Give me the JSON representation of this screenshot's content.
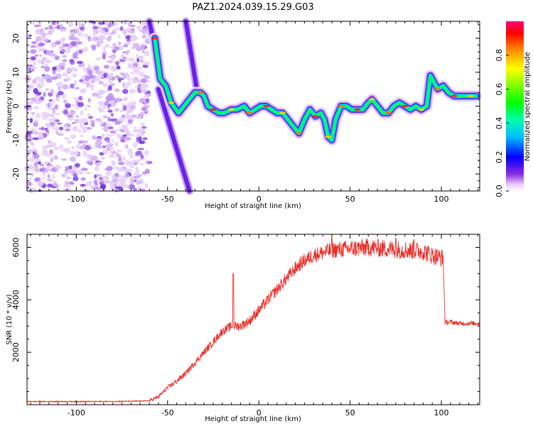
{
  "title": "PAZ1.2024.039.15.29.G03",
  "chart_data": [
    {
      "type": "heatmap",
      "xlabel": "Height of straight line (km)",
      "ylabel": "Frequency (Hz)",
      "xlim": [
        -127,
        121
      ],
      "ylim": [
        -25,
        25
      ],
      "xticks": [
        -100,
        -50,
        0,
        50,
        100
      ],
      "yticks": [
        -20,
        -10,
        0,
        10,
        20
      ],
      "colorbar": {
        "label": "Normalized spectral amplitude",
        "range": [
          0,
          1
        ],
        "ticks": [
          0.0,
          0.2,
          0.4,
          0.6,
          0.8
        ],
        "tick_labels": [
          "0.0",
          "0.2",
          "0.4",
          "0.6",
          "0.8"
        ],
        "colormap": "rainbow (magenta → blue → cyan → green → yellow → red)"
      },
      "ridge": {
        "description": "frequency of spectral peak vs height",
        "points": [
          [
            -57,
            20
          ],
          [
            -54,
            8
          ],
          [
            -51,
            6
          ],
          [
            -48,
            1
          ],
          [
            -44,
            -2
          ],
          [
            -35,
            4
          ],
          [
            -32,
            4
          ],
          [
            -30,
            3
          ],
          [
            -28,
            0
          ],
          [
            -25,
            -1
          ],
          [
            -22,
            -2
          ],
          [
            -19,
            -2
          ],
          [
            -15,
            -1
          ],
          [
            -12,
            -1
          ],
          [
            -8,
            0
          ],
          [
            -5,
            -2
          ],
          [
            -2,
            -1
          ],
          [
            1,
            0
          ],
          [
            4,
            0
          ],
          [
            7,
            -1
          ],
          [
            10,
            -2
          ],
          [
            13,
            -2
          ],
          [
            16,
            -4
          ],
          [
            19,
            -6
          ],
          [
            22,
            -8
          ],
          [
            25,
            -4
          ],
          [
            28,
            -1
          ],
          [
            31,
            -3
          ],
          [
            34,
            -2
          ],
          [
            36,
            -4
          ],
          [
            38,
            -9
          ],
          [
            40,
            -10
          ],
          [
            42,
            -4
          ],
          [
            45,
            0
          ],
          [
            48,
            0
          ],
          [
            51,
            -1
          ],
          [
            54,
            -1
          ],
          [
            57,
            -1
          ],
          [
            60,
            1
          ],
          [
            62,
            2
          ],
          [
            65,
            0
          ],
          [
            68,
            -2
          ],
          [
            71,
            -2
          ],
          [
            74,
            0
          ],
          [
            77,
            1
          ],
          [
            80,
            0
          ],
          [
            83,
            -1
          ],
          [
            86,
            0
          ],
          [
            89,
            -1
          ],
          [
            92,
            0
          ],
          [
            94,
            9
          ],
          [
            98,
            5
          ],
          [
            101,
            6
          ],
          [
            104,
            4
          ],
          [
            107,
            3
          ],
          [
            110,
            3
          ],
          [
            113,
            3
          ],
          [
            116,
            3
          ],
          [
            119,
            3
          ]
        ]
      },
      "noise_region": {
        "x_range": [
          -127,
          -60
        ],
        "description": "scattered low-amplitude noise"
      },
      "streaks": [
        {
          "x": [
            -60,
            -52
          ],
          "y": [
            25,
            5
          ]
        },
        {
          "x": [
            -55,
            -38
          ],
          "y": [
            5,
            -25
          ]
        },
        {
          "x": [
            -40,
            -34
          ],
          "y": [
            25,
            5
          ]
        }
      ]
    },
    {
      "type": "line",
      "xlabel": "Height of straight line (km)",
      "ylabel": "SNR (10 * v/v)",
      "xlim": [
        -127,
        121
      ],
      "ylim": [
        0,
        6500
      ],
      "xticks": [
        -100,
        -50,
        0,
        50,
        100
      ],
      "yticks": [
        2000,
        4000,
        6000
      ],
      "series": [
        {
          "color": "#e8302a",
          "x": [
            -127,
            -110,
            -90,
            -70,
            -60,
            -55,
            -50,
            -45,
            -40,
            -35,
            -30,
            -25,
            -20,
            -15,
            -10,
            -5,
            0,
            5,
            10,
            15,
            20,
            25,
            30,
            35,
            40,
            50,
            60,
            70,
            80,
            90,
            95,
            100,
            101,
            102,
            105,
            110,
            115,
            121
          ],
          "y": [
            120,
            120,
            120,
            130,
            150,
            300,
            650,
            900,
            1200,
            1600,
            2000,
            2400,
            2800,
            3000,
            3000,
            3200,
            3600,
            4000,
            4400,
            4800,
            5200,
            5500,
            5700,
            5800,
            5900,
            5950,
            6000,
            5950,
            5900,
            5850,
            5700,
            5600,
            5600,
            3150,
            3150,
            3100,
            3100,
            3100
          ]
        }
      ],
      "spikes": [
        [
          -14,
          5000
        ],
        [
          40,
          6400
        ],
        [
          75,
          6350
        ],
        [
          85,
          6300
        ]
      ]
    }
  ]
}
